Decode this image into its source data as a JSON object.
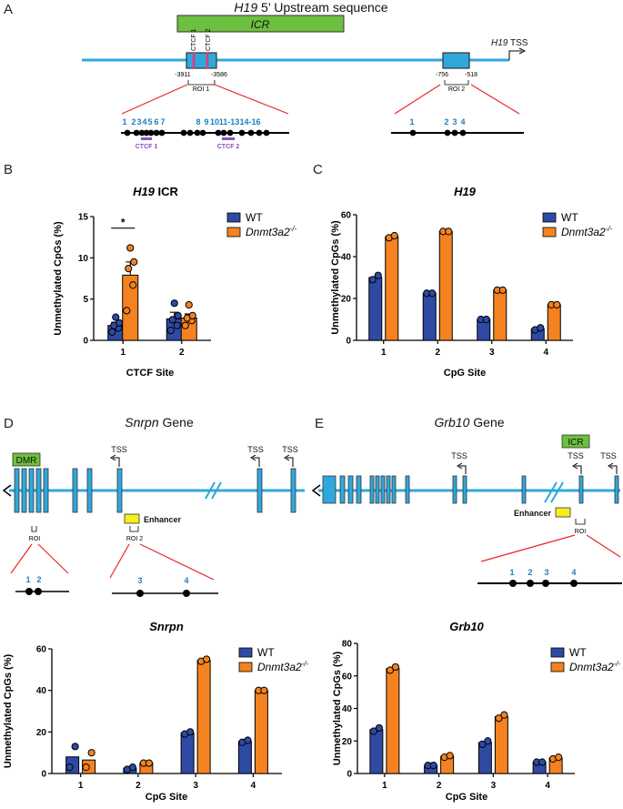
{
  "colors": {
    "wt": "#2e4aa3",
    "ko": "#f58220",
    "gene": "#2fa8dc",
    "icr": "#6cbf3f",
    "enhancer": "#f5ef1e",
    "ctcf": "#8a52b8",
    "red": "#e8262a"
  },
  "panel_a": {
    "label": "A",
    "title_gene": "H19",
    "title_rest": " 5’ Upstream sequence",
    "icr": "ICR",
    "ctcf1": "CTCF 1",
    "ctcf2": "CTCF 2",
    "pos1": "-3911",
    "pos2": "-3586",
    "pos3": "-756",
    "pos4": "-518",
    "roi1": "ROI 1",
    "roi2": "ROI 2",
    "tss_gene": "H19",
    "tss": " TSS",
    "cpg_left": [
      "1",
      "2",
      "3",
      "4",
      "5",
      "6",
      "7",
      "8",
      "9",
      "10",
      "11-13",
      "14-16"
    ],
    "ctcf1_bar": "CTCF 1",
    "ctcf2_bar": "CTCF 2",
    "cpg_right": [
      "1",
      "2",
      "3",
      "4"
    ]
  },
  "panel_d": {
    "label": "D",
    "gene": "Snrpn",
    "gene_rest": " Gene",
    "dmr": "DMR",
    "tss": "TSS",
    "enhancer": "Enhancer",
    "roi": "ROI",
    "roi2": "ROI 2",
    "cpgs": [
      "1",
      "2",
      "3",
      "4"
    ]
  },
  "panel_e": {
    "label": "E",
    "gene": "Grb10",
    "gene_rest": " Gene",
    "icr": "ICR",
    "tss": "TSS",
    "enhancer": "Enhancer",
    "roi": "ROI",
    "cpgs": [
      "1",
      "2",
      "3",
      "4"
    ]
  },
  "chart_data": [
    {
      "panel": "B",
      "type": "bar",
      "title_gene": "H19",
      "title_rest": " ICR",
      "xlabel": "CTCF Site",
      "ylabel": "Unmethylated CpGs (%)",
      "categories": [
        "1",
        "2"
      ],
      "ylim": [
        0,
        15
      ],
      "yticks": [
        "0",
        "5",
        "10",
        "15"
      ],
      "series": [
        {
          "name": "WT",
          "values": [
            1.8,
            2.6
          ],
          "errors": [
            0.4,
            0.8
          ],
          "points": [
            [
              1.0,
              1.5,
              1.8,
              2.1,
              2.8
            ],
            [
              1.2,
              1.8,
              2.5,
              3.0,
              4.5
            ]
          ]
        },
        {
          "name": "Dnmt3a2",
          "sup": "-/-",
          "values": [
            7.9,
            2.7
          ],
          "errors": [
            1.6,
            0.5
          ],
          "points": [
            [
              3.6,
              6.7,
              8.7,
              9.5,
              11.2
            ],
            [
              1.8,
              2.4,
              2.7,
              3.0,
              4.3
            ]
          ]
        }
      ],
      "annotation": "*"
    },
    {
      "panel": "C",
      "type": "bar",
      "title_gene": "H19",
      "title_rest": "",
      "xlabel": "CpG Site",
      "ylabel": "Unmethylated CpGs (%)",
      "categories": [
        "1",
        "2",
        "3",
        "4"
      ],
      "ylim": [
        0,
        60
      ],
      "yticks": [
        "0",
        "20",
        "40",
        "60"
      ],
      "series": [
        {
          "name": "WT",
          "values": [
            30,
            22.5,
            10,
            5.5
          ],
          "points": [
            [
              29,
              31
            ],
            [
              22.5,
              22.5
            ],
            [
              10,
              10
            ],
            [
              5,
              6
            ]
          ]
        },
        {
          "name": "Dnmt3a2",
          "sup": "-/-",
          "values": [
            49.5,
            52,
            24,
            17
          ],
          "points": [
            [
              49,
              50
            ],
            [
              52,
              52
            ],
            [
              24,
              24
            ],
            [
              17,
              17
            ]
          ]
        }
      ]
    },
    {
      "panel": "D",
      "type": "bar",
      "title_gene": "Snrpn",
      "title_rest": "",
      "xlabel": "CpG Site",
      "ylabel": "Unmethylated CpGs (%)",
      "categories": [
        "1",
        "2",
        "3",
        "4"
      ],
      "ylim": [
        0,
        60
      ],
      "yticks": [
        "0",
        "20",
        "40",
        "60"
      ],
      "series": [
        {
          "name": "WT",
          "values": [
            8,
            2.5,
            19.5,
            15.5
          ],
          "points": [
            [
              3,
              13
            ],
            [
              2,
              3
            ],
            [
              19,
              20
            ],
            [
              15,
              16
            ]
          ]
        },
        {
          "name": "Dnmt3a2",
          "sup": "-/-",
          "values": [
            6.5,
            5,
            54.5,
            40
          ],
          "points": [
            [
              3,
              10
            ],
            [
              5,
              5
            ],
            [
              54,
              55
            ],
            [
              40,
              40
            ]
          ]
        }
      ]
    },
    {
      "panel": "E",
      "type": "bar",
      "title_gene": "Grb10",
      "title_rest": "",
      "xlabel": "CpG Site",
      "ylabel": "Unmethylated CpGs (%)",
      "categories": [
        "1",
        "2",
        "3",
        "4"
      ],
      "ylim": [
        0,
        80
      ],
      "yticks": [
        "0",
        "20",
        "40",
        "60",
        "80"
      ],
      "series": [
        {
          "name": "WT",
          "values": [
            27,
            5,
            19,
            7
          ],
          "points": [
            [
              26,
              28
            ],
            [
              5,
              5
            ],
            [
              18,
              20
            ],
            [
              7,
              7
            ]
          ]
        },
        {
          "name": "Dnmt3a2",
          "sup": "-/-",
          "values": [
            64.5,
            10.5,
            35,
            9.5
          ],
          "points": [
            [
              63.5,
              65.5
            ],
            [
              10,
              11
            ],
            [
              34,
              36
            ],
            [
              9,
              10
            ]
          ]
        }
      ]
    }
  ]
}
